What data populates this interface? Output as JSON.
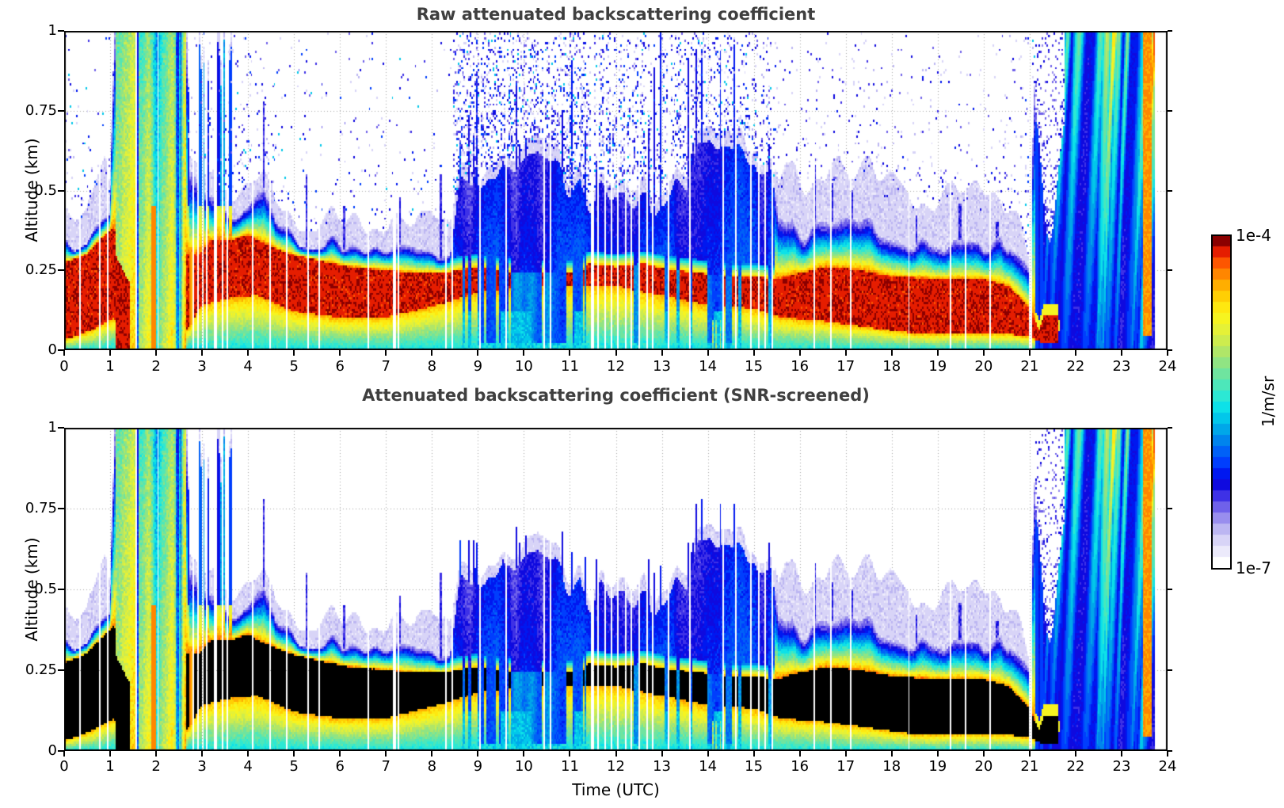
{
  "figure": {
    "top_title": "Raw attenuated backscattering coefficient",
    "bottom_title": "Attenuated backscattering coefficient (SNR-screened)",
    "xlabel": "Time (UTC)",
    "ylabel": "Altitude (km)",
    "colorbar": {
      "max_label": "1e-4",
      "min_label": "1e-7",
      "units": "1/m/sr"
    }
  },
  "chart_data": [
    {
      "type": "heatmap",
      "title": "Raw attenuated backscattering coefficient",
      "xlabel": "",
      "ylabel": "Altitude (km)",
      "xlim": [
        0,
        24
      ],
      "ylim": [
        0,
        1
      ],
      "x_tick_labels": [
        "0",
        "1",
        "2",
        "3",
        "4",
        "5",
        "6",
        "7",
        "8",
        "9",
        "10",
        "11",
        "12",
        "13",
        "14",
        "15",
        "16",
        "17",
        "18",
        "19",
        "20",
        "21",
        "22",
        "23",
        "24"
      ],
      "y_tick_labels": [
        "1",
        "0.75",
        "0.5",
        "0.25",
        "0"
      ],
      "grid": "dotted, hourly vertical and 0.25-km horizontal",
      "colorbar": {
        "scale": "log",
        "vmin_label": "1e-7",
        "vmax_label": "1e-4",
        "units": "1/m/sr",
        "n_steps": 30
      },
      "colormap_stops": [
        [
          0.0,
          255,
          255,
          255
        ],
        [
          0.035,
          236,
          234,
          251
        ],
        [
          0.075,
          212,
          208,
          246
        ],
        [
          0.115,
          178,
          171,
          240
        ],
        [
          0.155,
          134,
          120,
          236
        ],
        [
          0.195,
          82,
          68,
          232
        ],
        [
          0.225,
          32,
          21,
          226
        ],
        [
          0.255,
          0,
          0,
          221
        ],
        [
          0.285,
          0,
          34,
          248
        ],
        [
          0.32,
          0,
          72,
          255
        ],
        [
          0.36,
          0,
          112,
          242
        ],
        [
          0.4,
          0,
          154,
          232
        ],
        [
          0.44,
          0,
          192,
          234
        ],
        [
          0.48,
          10,
          224,
          234
        ],
        [
          0.52,
          47,
          233,
          210
        ],
        [
          0.56,
          85,
          230,
          180
        ],
        [
          0.6,
          124,
          227,
          148
        ],
        [
          0.64,
          163,
          228,
          116
        ],
        [
          0.68,
          198,
          234,
          85
        ],
        [
          0.72,
          227,
          241,
          58
        ],
        [
          0.76,
          247,
          244,
          31
        ],
        [
          0.8,
          255,
          230,
          13
        ],
        [
          0.84,
          255,
          196,
          0
        ],
        [
          0.88,
          255,
          157,
          0
        ],
        [
          0.91,
          255,
          115,
          0
        ],
        [
          0.94,
          252,
          74,
          0
        ],
        [
          0.965,
          230,
          30,
          0
        ],
        [
          0.985,
          195,
          0,
          0
        ],
        [
          1.0,
          139,
          0,
          0
        ]
      ],
      "field_model": {
        "note": "normalized log10 backscatter v: 0 = 1e-7 (white), 1 = 1e-4 (dark red); piecewise-linear breakpoints vs time (UTC hours)",
        "layer_top_km": {
          "x": [
            0,
            0.5,
            1.0,
            1.12,
            2.68,
            2.72,
            3.6,
            4.0,
            4.35,
            4.6,
            5.0,
            5.5,
            6.5,
            7.5,
            8.4,
            8.6,
            9.2,
            9.8,
            10.3,
            10.9,
            11.4,
            12.0,
            12.6,
            13.2,
            13.8,
            14.3,
            14.9,
            15.4,
            15.55,
            16.0,
            16.5,
            17.0,
            17.5,
            18.0,
            19.0,
            20.0,
            20.6,
            21.0,
            21.15,
            24
          ],
          "v": [
            0.33,
            0.35,
            0.41,
            1.0,
            1.0,
            0.55,
            0.4,
            0.43,
            0.5,
            0.42,
            0.36,
            0.34,
            0.32,
            0.3,
            0.3,
            0.48,
            0.55,
            0.5,
            0.58,
            0.52,
            0.48,
            0.5,
            0.46,
            0.52,
            0.58,
            0.62,
            0.55,
            0.62,
            0.42,
            0.36,
            0.4,
            0.42,
            0.39,
            0.35,
            0.32,
            0.31,
            0.34,
            0.28,
            1.0,
            1.0
          ]
        },
        "red_top_km": {
          "x": [
            0,
            0.5,
            0.9,
            1.1,
            1.3,
            2.6,
            2.95,
            3.2,
            3.6,
            4.0,
            4.4,
            4.9,
            5.5,
            6.2,
            7.0,
            7.6,
            8.35,
            8.55,
            9.0,
            9.4,
            10.0,
            11.25,
            11.4,
            12.0,
            12.6,
            12.9,
            13.3,
            13.9,
            14.5,
            15.0,
            15.5,
            16.0,
            16.6,
            17.3,
            18.0,
            19.0,
            20.0,
            20.55,
            21.0,
            21.22,
            21.32,
            21.62,
            21.68,
            24
          ],
          "v": [
            0.27,
            0.3,
            0.36,
            0.38,
            0.3,
            0.3,
            0.3,
            0.34,
            0.34,
            0.36,
            0.33,
            0.3,
            0.28,
            0.26,
            0.25,
            0.24,
            0.24,
            0.25,
            0.26,
            0.25,
            0.24,
            0.24,
            0.27,
            0.26,
            0.27,
            0.26,
            0.25,
            0.24,
            0.23,
            0.23,
            0.22,
            0.24,
            0.26,
            0.25,
            0.23,
            0.22,
            0.22,
            0.2,
            0.13,
            0.06,
            0.11,
            0.11,
            0.0,
            0.0
          ]
        },
        "red_base_km": {
          "x": [
            0,
            0.6,
            1.1,
            1.35,
            2.6,
            3.0,
            3.6,
            4.2,
            5.0,
            6.0,
            7.0,
            8.4,
            9.0,
            10.0,
            11.3,
            12.0,
            13.0,
            14.0,
            15.0,
            15.6,
            16.5,
            17.5,
            18.5,
            19.5,
            20.5,
            21.0,
            21.3,
            21.65,
            24
          ],
          "v": [
            0.03,
            0.06,
            0.1,
            0.04,
            0.04,
            0.14,
            0.16,
            0.17,
            0.12,
            0.1,
            0.1,
            0.15,
            0.18,
            0.2,
            0.2,
            0.2,
            0.17,
            0.14,
            0.13,
            0.1,
            0.09,
            0.07,
            0.05,
            0.05,
            0.05,
            0.04,
            0.02,
            0.02,
            0.02
          ]
        },
        "red_presence": {
          "x": [
            0,
            1.05,
            1.18,
            1.45,
            2.55,
            2.85,
            8.35,
            8.65,
            9.1,
            9.45,
            10.0,
            11.2,
            11.38,
            12.85,
            13.05,
            13.5,
            14.4,
            14.75,
            15.0,
            15.5,
            20.9,
            21.05,
            21.28,
            21.36,
            21.58,
            21.66,
            24
          ],
          "v": [
            1,
            1,
            0.75,
            0.15,
            0.15,
            1,
            1,
            0.55,
            0.4,
            0.18,
            0.1,
            0.12,
            0.85,
            0.85,
            0.55,
            0.8,
            0.5,
            0.75,
            0.85,
            1,
            1,
            0.85,
            0.6,
            1,
            1,
            0,
            0
          ]
        },
        "drizzle_zone": {
          "x": [
            0,
            8.35,
            8.6,
            15.35,
            15.6,
            24
          ],
          "v": [
            0,
            0,
            1,
            1,
            0,
            0
          ]
        },
        "haze_above_km": {
          "x": [
            0,
            0.9,
            1.1,
            2.7,
            3.6,
            4.5,
            8.3,
            8.6,
            15.4,
            15.7,
            17.0,
            18.0,
            19.5,
            20.8,
            21.1,
            24
          ],
          "v": [
            0.1,
            0.14,
            0,
            0.06,
            0.08,
            0.06,
            0.1,
            0.04,
            0.04,
            0.16,
            0.15,
            0.17,
            0.14,
            0.12,
            0,
            0
          ]
        },
        "rain_event_a_hours": [
          1.12,
          2.68
        ],
        "post_rain_columns_hours": [
          2.7,
          3.65
        ],
        "rain_event_b_start_hour": 21.15,
        "red_column_hours": [
          23.47,
          23.66
        ],
        "clear_hole": {
          "center_hour": 21.45,
          "sigma_hour": 0.25,
          "z_base_km": 0.33
        },
        "data_end_hour": 23.72,
        "blue_spike_columns": [
          [
            4.35,
            0.78
          ],
          [
            5.3,
            0.55
          ],
          [
            6.1,
            0.45
          ],
          [
            7.3,
            0.48
          ],
          [
            8.2,
            0.55
          ],
          [
            16.35,
            0.58
          ],
          [
            16.7,
            0.52
          ],
          [
            17.15,
            0.5
          ],
          [
            18.55,
            0.42
          ],
          [
            19.5,
            0.46
          ],
          [
            20.3,
            0.4
          ]
        ],
        "missing_data_gaps": [
          [
            0.35,
            0.012
          ],
          [
            0.78,
            0.018
          ],
          [
            0.95,
            0.018
          ],
          [
            1.5,
            0.015
          ],
          [
            1.58,
            0.015
          ],
          [
            2.06,
            0.012
          ],
          [
            2.82,
            0.02
          ],
          [
            2.93,
            0.02
          ],
          [
            3.03,
            0.018
          ],
          [
            3.12,
            0.02
          ],
          [
            3.3,
            0.03
          ],
          [
            3.45,
            0.022
          ],
          [
            3.56,
            0.018
          ],
          [
            4.13,
            0.02
          ],
          [
            4.48,
            0.018
          ],
          [
            4.86,
            0.012
          ],
          [
            5.33,
            0.018
          ],
          [
            5.56,
            0.015
          ],
          [
            6.1,
            0.012
          ],
          [
            6.62,
            0.015
          ],
          [
            7.2,
            0.022
          ],
          [
            7.29,
            0.015
          ],
          [
            8.31,
            0.018
          ],
          [
            8.45,
            0.015
          ],
          [
            9.05,
            0.012
          ],
          [
            9.3,
            0.015
          ],
          [
            9.63,
            0.018
          ],
          [
            10.2,
            0.012
          ],
          [
            10.45,
            0.02
          ],
          [
            10.58,
            0.015
          ],
          [
            11.5,
            0.018
          ],
          [
            11.63,
            0.015
          ],
          [
            11.77,
            0.018
          ],
          [
            11.91,
            0.015
          ],
          [
            12.06,
            0.018
          ],
          [
            12.21,
            0.015
          ],
          [
            12.36,
            0.018
          ],
          [
            12.53,
            0.015
          ],
          [
            12.69,
            0.018
          ],
          [
            12.83,
            0.015
          ],
          [
            13.16,
            0.018
          ],
          [
            13.61,
            0.015
          ],
          [
            13.9,
            0.012
          ],
          [
            14.36,
            0.018
          ],
          [
            14.62,
            0.015
          ],
          [
            14.96,
            0.018
          ],
          [
            15.11,
            0.015
          ],
          [
            15.26,
            0.018
          ],
          [
            15.43,
            0.015
          ],
          [
            16.31,
            0.018
          ],
          [
            16.69,
            0.015
          ],
          [
            17.13,
            0.015
          ],
          [
            17.8,
            0.012
          ],
          [
            18.39,
            0.018
          ],
          [
            19.27,
            0.015
          ],
          [
            19.62,
            0.015
          ],
          [
            20.15,
            0.012
          ],
          [
            21.04,
            0.025
          ]
        ]
      }
    },
    {
      "type": "heatmap",
      "title": "Attenuated backscattering coefficient (SNR-screened)",
      "xlabel": "Time (UTC)",
      "ylabel": "Altitude (km)",
      "xlim": [
        0,
        24
      ],
      "ylim": [
        0,
        1
      ],
      "x_tick_labels": [
        "0",
        "1",
        "2",
        "3",
        "4",
        "5",
        "6",
        "7",
        "8",
        "9",
        "10",
        "11",
        "12",
        "13",
        "14",
        "15",
        "16",
        "17",
        "18",
        "19",
        "20",
        "21",
        "22",
        "23",
        "24"
      ],
      "y_tick_labels": [
        "1",
        "0.75",
        "0.5",
        "0.25",
        "0"
      ],
      "field_model_ref": "same field as panel 0 with SNR screening: above-layer noise speckle removed (white) and saturated values (v > 0.935) rendered black"
    }
  ]
}
